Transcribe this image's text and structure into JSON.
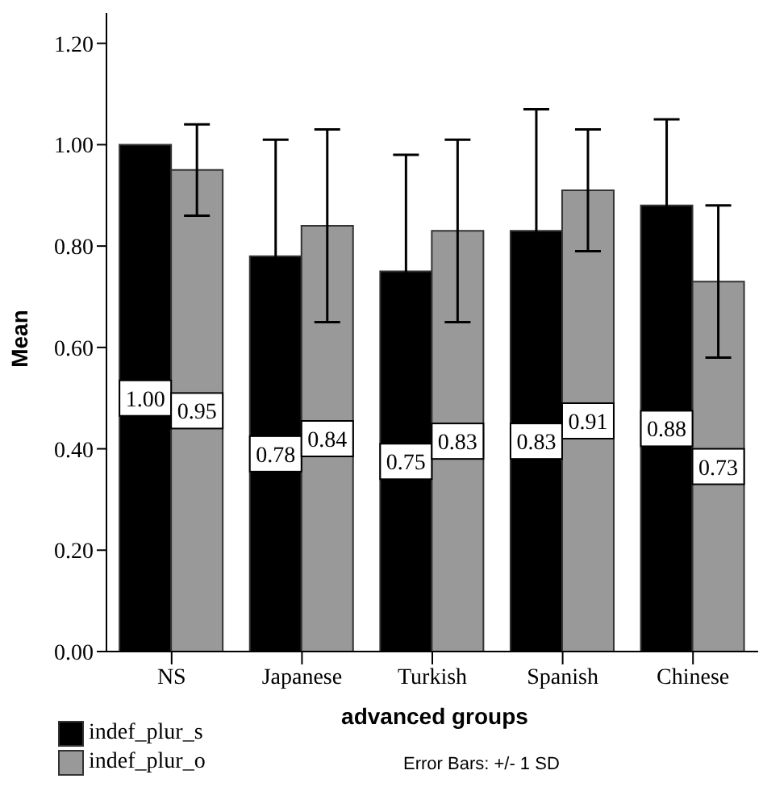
{
  "chart_data": {
    "type": "bar",
    "xlabel": "advanced groups",
    "ylabel": "Mean",
    "categories": [
      "NS",
      "Japanese",
      "Turkish",
      "Spanish",
      "Chinese"
    ],
    "series": [
      {
        "name": "indef_plur_s",
        "color": "#000000",
        "values": [
          1.0,
          0.78,
          0.75,
          0.83,
          0.88
        ],
        "value_labels": [
          "1.00",
          "0.78",
          "0.75",
          "0.83",
          "0.88"
        ],
        "errors": [
          0,
          0.23,
          0.23,
          0.24,
          0.17
        ]
      },
      {
        "name": "indef_plur_o",
        "color": "#999999",
        "values": [
          0.95,
          0.84,
          0.83,
          0.91,
          0.73
        ],
        "value_labels": [
          "0.95",
          "0.84",
          "0.83",
          "0.91",
          "0.73"
        ],
        "errors": [
          0.09,
          0.19,
          0.18,
          0.12,
          0.15
        ]
      }
    ],
    "ylim": [
      0,
      1.26
    ],
    "yticks": [
      {
        "value": 0,
        "label": "0.00"
      },
      {
        "value": 0.2,
        "label": "0.20"
      },
      {
        "value": 0.4,
        "label": "0.40"
      },
      {
        "value": 0.6,
        "label": "0.60"
      },
      {
        "value": 0.8,
        "label": "0.80"
      },
      {
        "value": 1,
        "label": "1.00"
      },
      {
        "value": 1.2,
        "label": "1.20"
      }
    ],
    "grid": false,
    "legend": "bottom left",
    "annotations": [
      "Error Bars: +/- 1 SD"
    ]
  }
}
